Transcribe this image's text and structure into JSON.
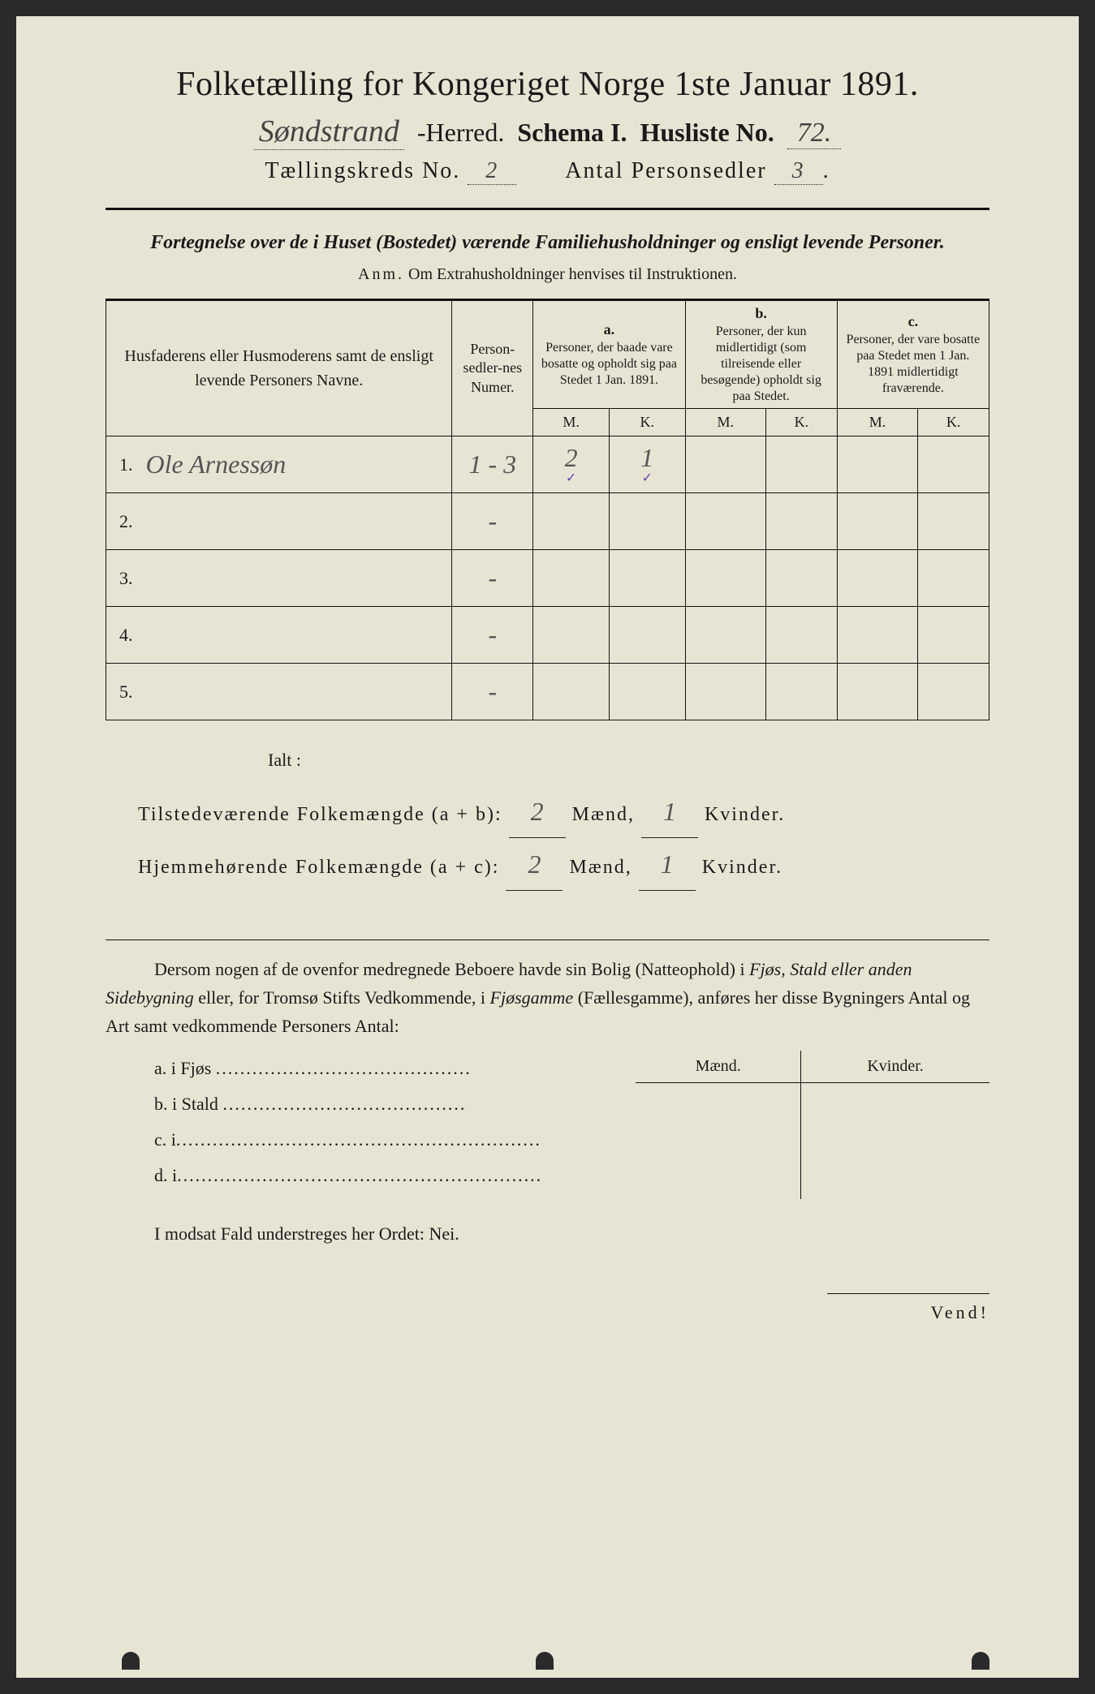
{
  "header": {
    "title": "Folketælling for Kongeriget Norge 1ste Januar 1891.",
    "herred_value": "Søndstrand",
    "herred_label": "-Herred.",
    "schema_label": "Schema I.",
    "husliste_label": "Husliste No.",
    "husliste_value": "72.",
    "kreds_label": "Tællingskreds No.",
    "kreds_value": "2",
    "antal_label": "Antal Personsedler",
    "antal_value": "3"
  },
  "intro": {
    "line": "Fortegnelse over de i Huset (Bostedet) værende Familiehusholdninger og ensligt levende Personer.",
    "anm_label": "Anm.",
    "anm_text": "Om Extrahusholdninger henvises til Instruktionen."
  },
  "table": {
    "col_names": "Husfaderens eller Husmoderens samt de ensligt levende Personers Navne.",
    "col_nums": "Person-sedler-nes Numer.",
    "group_a_letter": "a.",
    "group_a": "Personer, der baade vare bosatte og opholdt sig paa Stedet 1 Jan. 1891.",
    "group_b_letter": "b.",
    "group_b": "Personer, der kun midlertidigt (som tilreisende eller besøgende) opholdt sig paa Stedet.",
    "group_c_letter": "c.",
    "group_c": "Personer, der vare bosatte paa Stedet men 1 Jan. 1891 midlertidigt fraværende.",
    "M": "M.",
    "K": "K.",
    "rows": [
      {
        "n": "1.",
        "name": "Ole Arnessøn",
        "nums": "1 - 3",
        "aM": "2",
        "aK": "1",
        "bM": "",
        "bK": "",
        "cM": "",
        "cK": ""
      },
      {
        "n": "2.",
        "name": "",
        "nums": "-",
        "aM": "",
        "aK": "",
        "bM": "",
        "bK": "",
        "cM": "",
        "cK": ""
      },
      {
        "n": "3.",
        "name": "",
        "nums": "-",
        "aM": "",
        "aK": "",
        "bM": "",
        "bK": "",
        "cM": "",
        "cK": ""
      },
      {
        "n": "4.",
        "name": "",
        "nums": "-",
        "aM": "",
        "aK": "",
        "bM": "",
        "bK": "",
        "cM": "",
        "cK": ""
      },
      {
        "n": "5.",
        "name": "",
        "nums": "-",
        "aM": "",
        "aK": "",
        "bM": "",
        "bK": "",
        "cM": "",
        "cK": ""
      }
    ]
  },
  "totals": {
    "ialt": "Ialt :",
    "tilst_label": "Tilstedeværende Folkemængde (a + b):",
    "hjem_label": "Hjemmehørende Folkemængde (a + c):",
    "maend": "Mænd,",
    "kvinder": "Kvinder.",
    "tilst_m": "2",
    "tilst_k": "1",
    "hjem_m": "2",
    "hjem_k": "1"
  },
  "para": {
    "text1": "Dersom nogen af de ovenfor medregnede Beboere havde sin Bolig (Natteophold) i ",
    "ital1": "Fjøs, Stald eller anden Sidebygning",
    "text2": " eller, for Tromsø Stifts Vedkommende, i ",
    "ital2": "Fjøsgamme",
    "text3": " (Fællesgamme), anføres her disse Bygningers Antal og Art samt vedkommende Personers Antal:"
  },
  "side": {
    "maend": "Mænd.",
    "kvinder": "Kvinder.",
    "rows": [
      {
        "lbl": "a.  i      Fjøs ",
        "dots": ".........................................."
      },
      {
        "lbl": "b.  i      Stald ",
        "dots": "........................................"
      },
      {
        "lbl": "c.  i",
        "dots": "............................................................"
      },
      {
        "lbl": "d.  i",
        "dots": "............................................................"
      }
    ]
  },
  "nei": "I modsat Fald understreges her Ordet: Nei.",
  "vend": "Vend!"
}
